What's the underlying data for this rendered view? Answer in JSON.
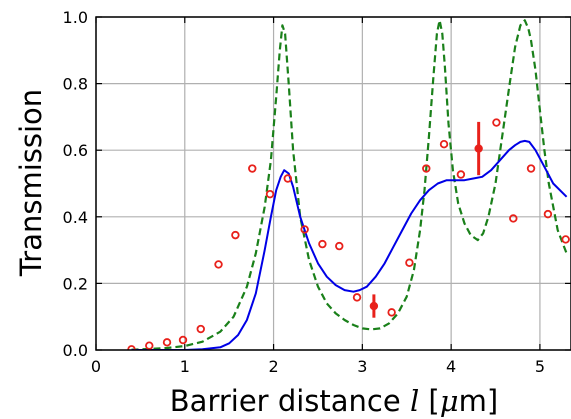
{
  "chart_data": {
    "type": "line",
    "xlabel": {
      "prefix": "Barrier distance ",
      "var": "l",
      "unit_open": " [",
      "unit_mu": "μ",
      "unit_m": "m",
      "unit_close": "]"
    },
    "ylabel": "Transmission",
    "xlim": [
      0,
      5.35
    ],
    "ylim": [
      0,
      1.0
    ],
    "xticks": [
      0,
      1,
      2,
      3,
      4,
      5
    ],
    "xtick_labels": [
      "0",
      "1",
      "2",
      "3",
      "4",
      "5"
    ],
    "yticks": [
      0.0,
      0.2,
      0.4,
      0.6,
      0.8,
      1.0
    ],
    "ytick_labels": [
      "0.0",
      "0.2",
      "0.4",
      "0.6",
      "0.8",
      "1.0"
    ],
    "grid": true,
    "colors": {
      "measured": "#e8211b",
      "averaged": "#0000e6",
      "ideal": "#1a801a",
      "grid": "#b0b0b0",
      "axes": "#000000"
    },
    "series": [
      {
        "style": "dashed-green",
        "x": [
          0.4,
          0.6,
          0.8,
          1.0,
          1.2,
          1.4,
          1.55,
          1.7,
          1.8,
          1.9,
          1.97,
          2.03,
          2.07,
          2.1,
          2.13,
          2.17,
          2.22,
          2.3,
          2.4,
          2.5,
          2.6,
          2.7,
          2.8,
          2.9,
          3.0,
          3.1,
          3.2,
          3.3,
          3.4,
          3.5,
          3.58,
          3.65,
          3.7,
          3.75,
          3.8,
          3.84,
          3.87,
          3.9,
          3.93,
          3.97,
          4.02,
          4.08,
          4.15,
          4.22,
          4.3,
          4.36,
          4.42,
          4.5,
          4.58,
          4.66,
          4.72,
          4.78,
          4.83,
          4.87,
          4.9,
          4.95,
          5.0,
          5.05,
          5.1,
          5.2,
          5.3
        ],
        "y": [
          0.001,
          0.003,
          0.006,
          0.012,
          0.025,
          0.055,
          0.1,
          0.19,
          0.29,
          0.43,
          0.57,
          0.76,
          0.9,
          0.975,
          0.95,
          0.8,
          0.6,
          0.4,
          0.27,
          0.19,
          0.14,
          0.11,
          0.09,
          0.075,
          0.065,
          0.062,
          0.065,
          0.08,
          0.11,
          0.16,
          0.24,
          0.36,
          0.48,
          0.64,
          0.82,
          0.95,
          0.99,
          0.95,
          0.85,
          0.68,
          0.54,
          0.44,
          0.38,
          0.345,
          0.33,
          0.35,
          0.4,
          0.5,
          0.65,
          0.8,
          0.91,
          0.975,
          0.99,
          0.965,
          0.93,
          0.84,
          0.72,
          0.6,
          0.5,
          0.36,
          0.29
        ]
      },
      {
        "style": "solid-blue",
        "x": [
          0.4,
          0.6,
          0.8,
          1.0,
          1.2,
          1.4,
          1.5,
          1.6,
          1.7,
          1.8,
          1.9,
          1.97,
          2.03,
          2.08,
          2.12,
          2.17,
          2.22,
          2.3,
          2.4,
          2.5,
          2.6,
          2.7,
          2.8,
          2.9,
          2.97,
          3.05,
          3.15,
          3.25,
          3.35,
          3.45,
          3.55,
          3.65,
          3.75,
          3.85,
          3.95,
          4.05,
          4.15,
          4.25,
          4.35,
          4.45,
          4.55,
          4.65,
          4.72,
          4.78,
          4.83,
          4.88,
          4.95,
          5.05,
          5.15,
          5.3
        ],
        "y": [
          0.0,
          0.0,
          0.0,
          0.0,
          0.002,
          0.008,
          0.02,
          0.045,
          0.09,
          0.17,
          0.3,
          0.4,
          0.48,
          0.52,
          0.54,
          0.53,
          0.49,
          0.4,
          0.32,
          0.26,
          0.22,
          0.195,
          0.18,
          0.175,
          0.18,
          0.19,
          0.22,
          0.26,
          0.31,
          0.36,
          0.41,
          0.45,
          0.48,
          0.5,
          0.51,
          0.51,
          0.51,
          0.515,
          0.52,
          0.54,
          0.57,
          0.6,
          0.615,
          0.625,
          0.628,
          0.625,
          0.6,
          0.55,
          0.5,
          0.46
        ]
      },
      {
        "style": "red-open-circles",
        "x": [
          0.4,
          0.6,
          0.8,
          0.98,
          1.18,
          1.38,
          1.57,
          1.76,
          1.96,
          2.16,
          2.35,
          2.55,
          2.74,
          2.94,
          3.13,
          3.33,
          3.53,
          3.72,
          3.92,
          4.11,
          4.31,
          4.51,
          4.7,
          4.9,
          5.09,
          5.29
        ],
        "y": [
          0.002,
          0.013,
          0.023,
          0.03,
          0.063,
          0.257,
          0.345,
          0.545,
          0.468,
          0.515,
          0.362,
          0.318,
          0.312,
          0.158,
          0.132,
          0.113,
          0.262,
          0.545,
          0.618,
          0.527,
          0.605,
          0.683,
          0.395,
          0.545,
          0.408,
          0.332
        ]
      }
    ],
    "error_bars": [
      {
        "x": 3.13,
        "y": 0.132,
        "err": 0.035
      },
      {
        "x": 4.31,
        "y": 0.605,
        "err": 0.08
      }
    ]
  }
}
